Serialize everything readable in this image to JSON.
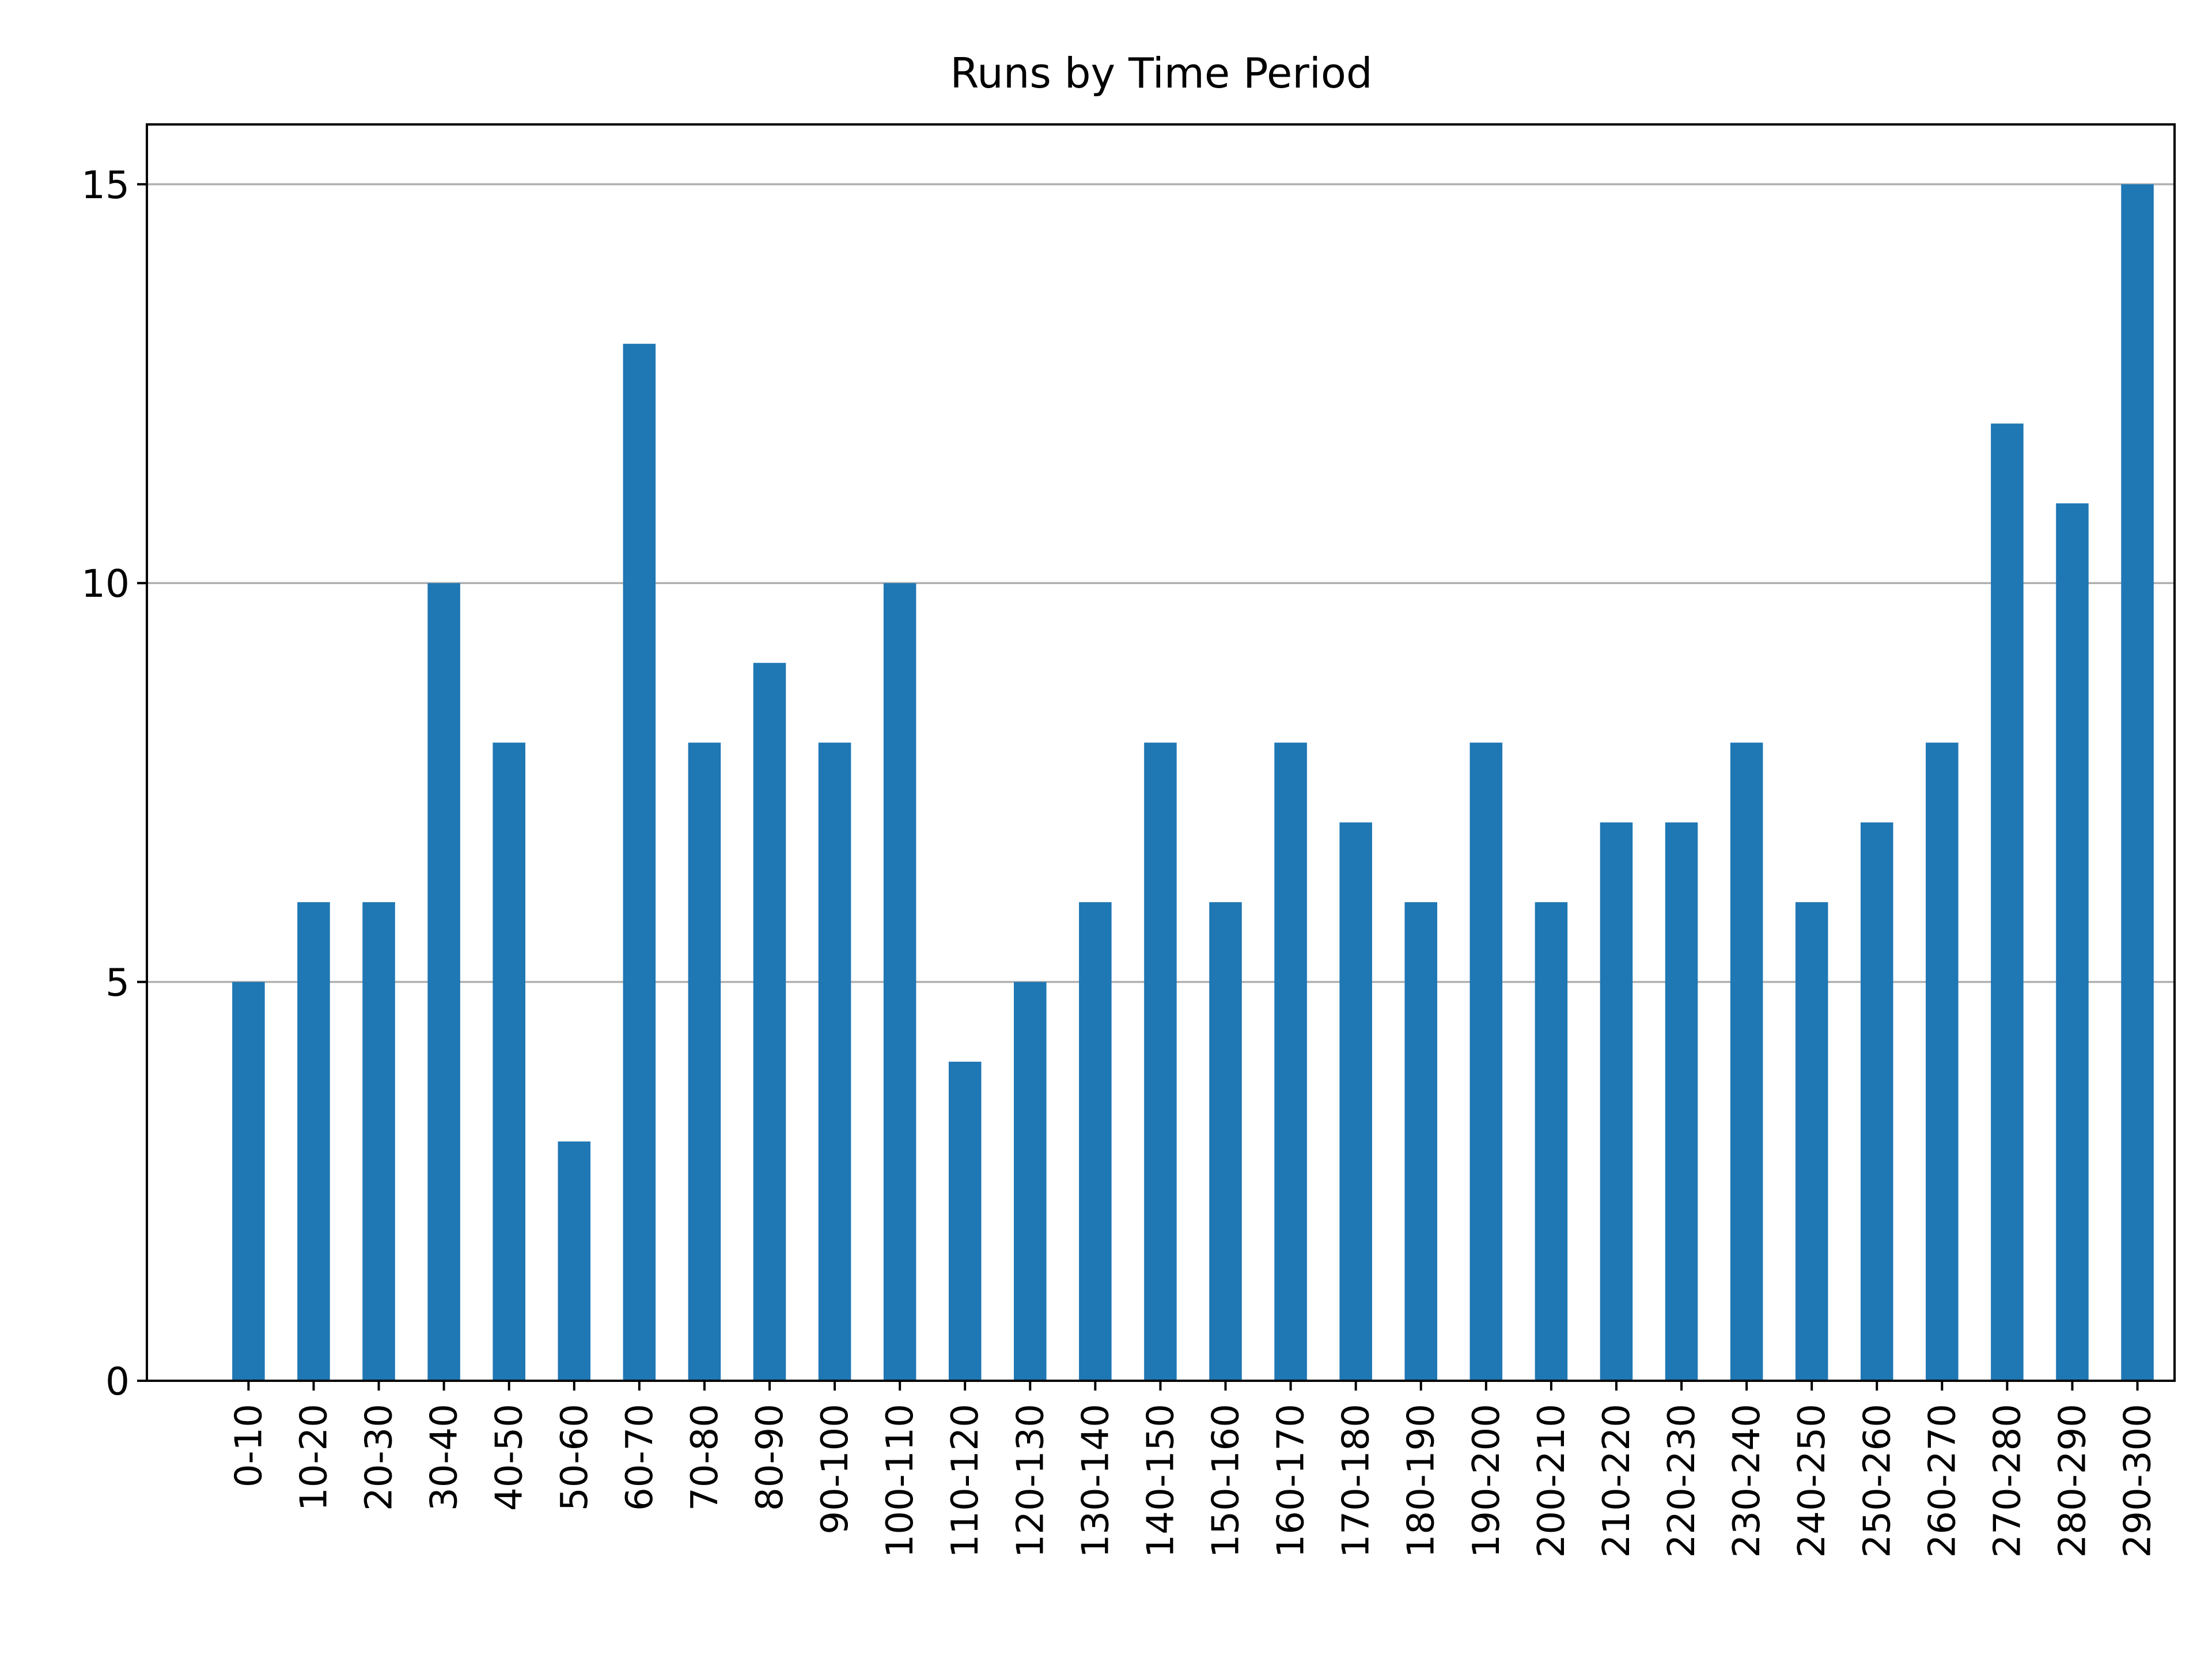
{
  "chart_data": {
    "type": "bar",
    "title": "Runs by Time Period",
    "xlabel": "",
    "ylabel": "",
    "categories": [
      "0-10",
      "10-20",
      "20-30",
      "30-40",
      "40-50",
      "50-60",
      "60-70",
      "70-80",
      "80-90",
      "90-100",
      "100-110",
      "110-120",
      "120-130",
      "130-140",
      "140-150",
      "150-160",
      "160-170",
      "170-180",
      "180-190",
      "190-200",
      "200-210",
      "210-220",
      "220-230",
      "230-240",
      "240-250",
      "250-260",
      "260-270",
      "270-280",
      "280-290",
      "290-300"
    ],
    "values": [
      5,
      6,
      6,
      10,
      8,
      3,
      13,
      8,
      9,
      8,
      10,
      4,
      5,
      6,
      8,
      6,
      8,
      7,
      6,
      8,
      6,
      7,
      7,
      8,
      6,
      7,
      8,
      12,
      11,
      15
    ],
    "ylim": [
      0,
      15.75
    ],
    "yticks": [
      0,
      5,
      10,
      15
    ],
    "grid": "horizontal",
    "bar_color": "#1f77b4",
    "grid_color": "#b0b0b0"
  }
}
